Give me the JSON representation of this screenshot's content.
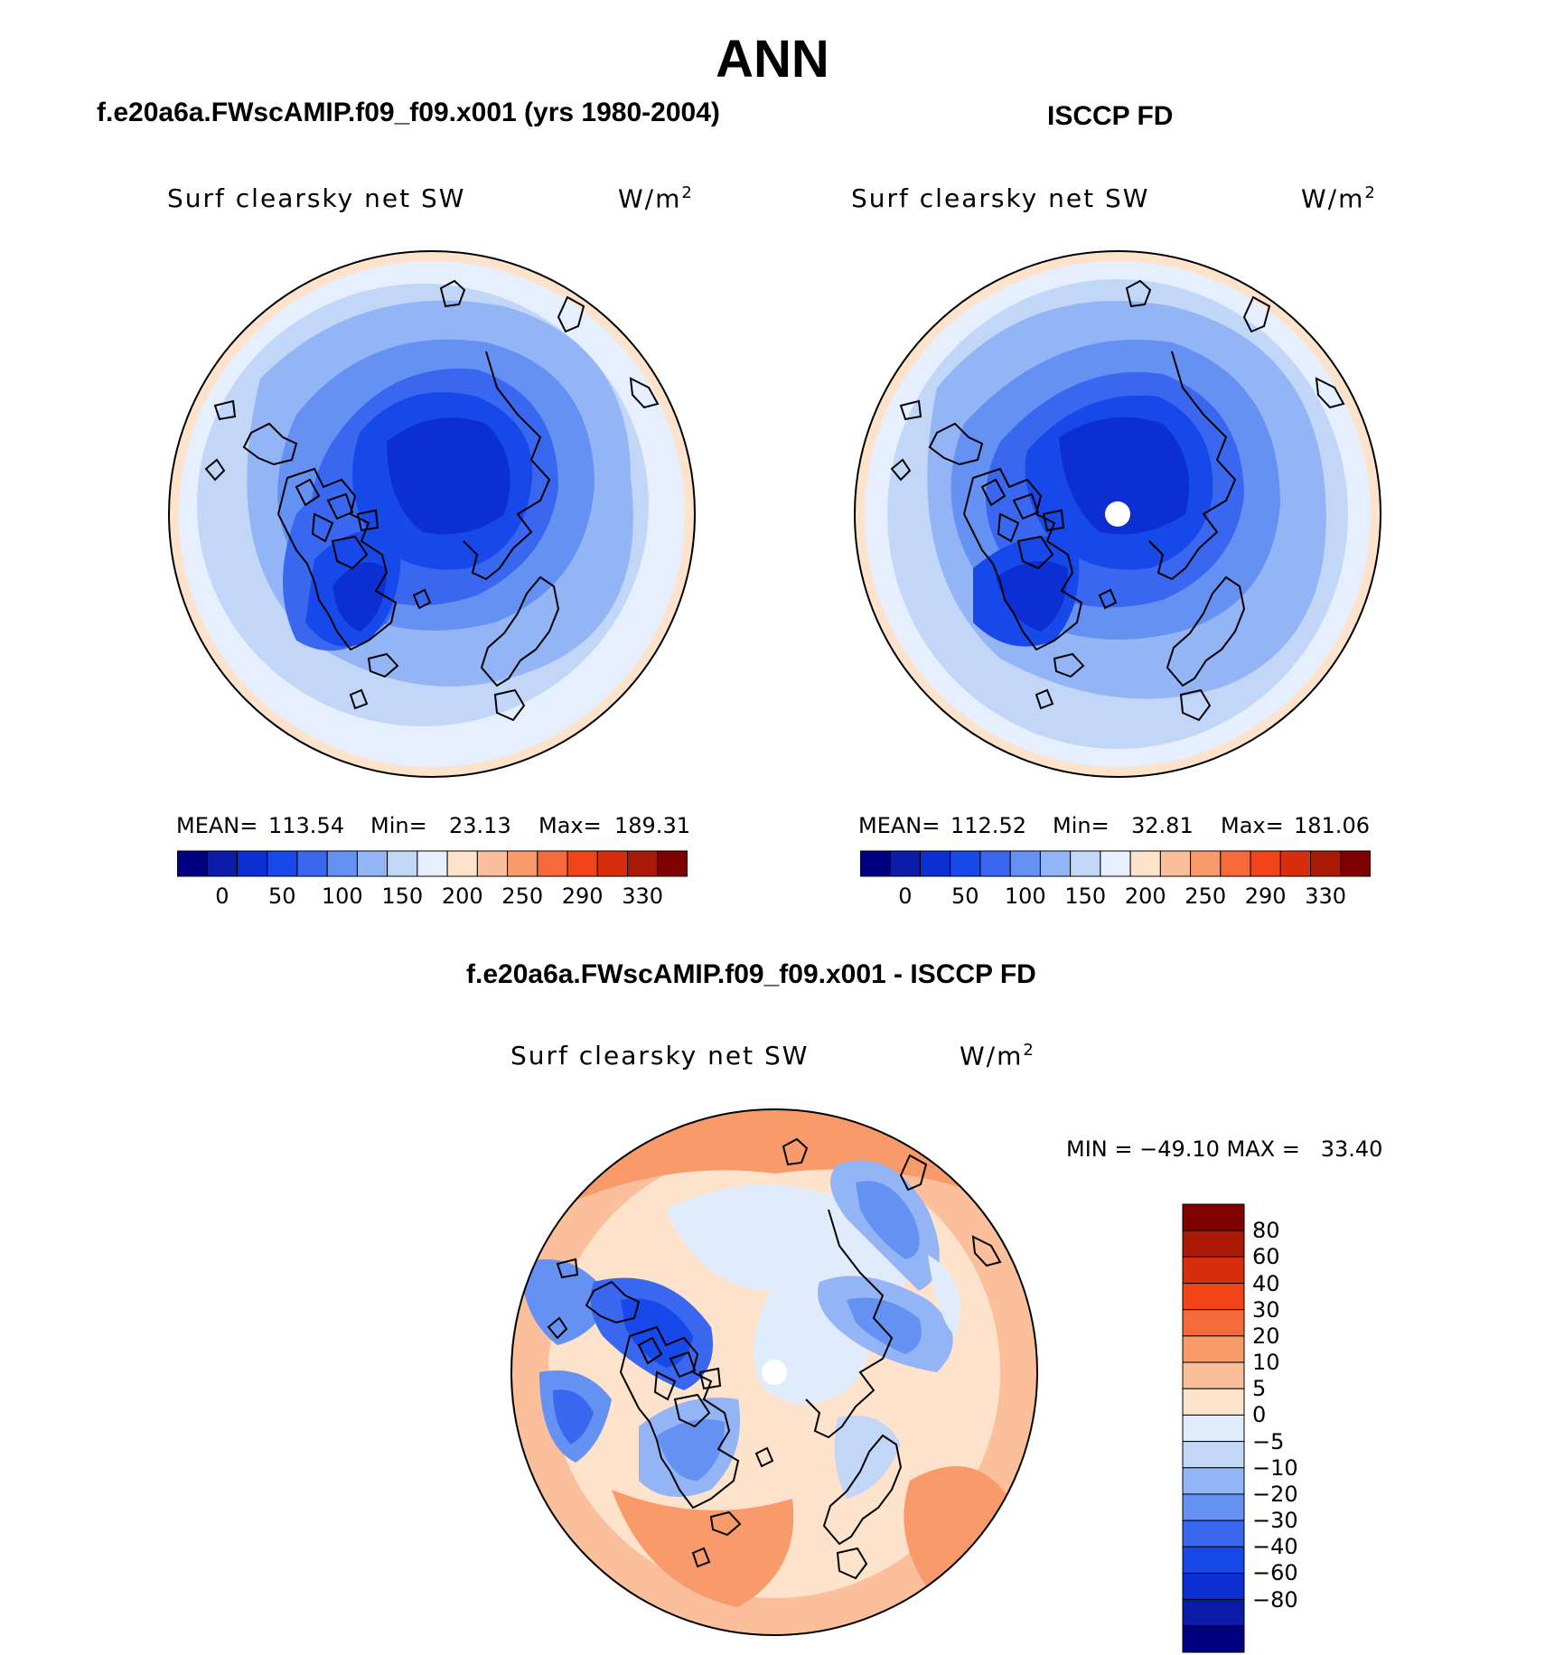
{
  "title": "ANN",
  "panels": [
    {
      "heading": "f.e20a6a.FWscAMIP.f09_f09.x001 (yrs 1980-2004)",
      "variable": "Surf clearsky net SW",
      "units_base": "W/m",
      "units_exp": "2",
      "mean_label": "MEAN=",
      "mean_value": "113.54",
      "min_label": "Min=",
      "min_value": "23.13",
      "max_label": "Max=",
      "max_value": "189.31"
    },
    {
      "heading": "ISCCP FD",
      "variable": "Surf clearsky net SW",
      "units_base": "W/m",
      "units_exp": "2",
      "mean_label": "MEAN=",
      "mean_value": "112.52",
      "min_label": "Min=",
      "min_value": "32.81",
      "max_label": "Max=",
      "max_value": "181.06"
    }
  ],
  "abs_colorbar": {
    "tick_labels": [
      "0",
      "50",
      "100",
      "150",
      "200",
      "250",
      "290",
      "330"
    ],
    "colors": [
      "#000080",
      "#0a1ca8",
      "#0b2fd0",
      "#1748ea",
      "#3a67ef",
      "#6592f2",
      "#93b5f5",
      "#c2d7f8",
      "#e6efff",
      "#fde3cc",
      "#fbbf9b",
      "#f89a6a",
      "#f56a38",
      "#f14418",
      "#d62e0e",
      "#aa1a06",
      "#7e0000"
    ]
  },
  "diff": {
    "heading": "f.e20a6a.FWscAMIP.f09_f09.x001 - ISCCP FD",
    "variable": "Surf clearsky net SW",
    "units_base": "W/m",
    "units_exp": "2",
    "minmax": "MIN = −49.10 MAX =   33.40",
    "levels": [
      "80",
      "60",
      "40",
      "30",
      "20",
      "10",
      "5",
      "0",
      "−5",
      "−10",
      "−20",
      "−30",
      "−40",
      "−60",
      "−80"
    ],
    "colors": [
      "#7e0000",
      "#aa1a06",
      "#d62e0e",
      "#f14418",
      "#f56a38",
      "#f89a6a",
      "#fbbf9b",
      "#fde3cc",
      "#e0ecfc",
      "#c2d7f8",
      "#93b5f5",
      "#6592f2",
      "#3a67ef",
      "#1748ea",
      "#0b2fd0",
      "#0a1ca8",
      "#000080"
    ]
  }
}
